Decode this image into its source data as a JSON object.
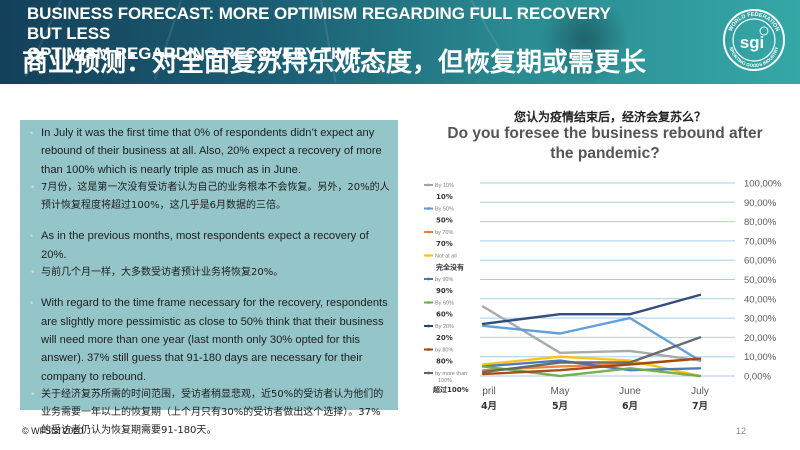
{
  "header": {
    "title_en_line1": "BUSINESS FORECAST: MORE OPTIMISM REGARDING FULL RECOVERY BUT LESS",
    "title_en_line2": "OPTIMISM REGARDING RECOVERY TIME",
    "title_zh": "商业预测：对全面复苏持乐观态度，但恢复期或需更长",
    "logo": {
      "icon": "sgi-logo-icon",
      "ring_text_top": "WORLD FEDERATION",
      "ring_text_bottom": "SPORTING GOODS INDUSTRY",
      "center_text": "sgi"
    }
  },
  "text_panel": {
    "bullets": [
      {
        "lang": "en",
        "text": "In July it was the first time that 0% of respondents didn’t expect any rebound of their business at all. Also, 20% expect a recovery of more than 100% which is nearly triple as much as in June."
      },
      {
        "lang": "zh",
        "text": "7月份，这是第一次没有受访者认为自己的业务根本不会恢复。另外，20%的人预计恢复程度将超过100%，这几乎是6月数据的三倍。"
      },
      {
        "lang": "en",
        "text": "As in the previous months, most respondents expect a recovery of 20%."
      },
      {
        "lang": "zh",
        "text": "与前几个月一样，大多数受访者预计业务将恢复20%。"
      },
      {
        "lang": "en",
        "text": "With regard to the time frame necessary for  the recovery, respondents are slightly more pessimistic as close to 50% think that their business will need more than one year (last  month only 30% opted for this answer). 37% still guess that 91-180 days are necessary for their company to rebound."
      },
      {
        "lang": "zh",
        "text": "关于经济复苏所需的时间范围，受访者稍显悲观，近50%的受访者认为他们的业务需要一年以上的恢复期（上个月只有30%的受访者做出这个选择）。37%的受访者仍认为恢复期需要91-180天。"
      }
    ]
  },
  "chart_data": {
    "type": "line",
    "title_zh": "您认为疫情结束后，经济会复苏么？",
    "title": "Do you foresee the business rebound after the pandemic?",
    "xlabel": "",
    "ylabel": "",
    "categories": [
      "pril",
      "May",
      "June",
      "July"
    ],
    "categories_zh": [
      "4月",
      "5月",
      "6月",
      "7月"
    ],
    "ylim": [
      0,
      100
    ],
    "yticks": [
      "0,00%",
      "10,00%",
      "20,00%",
      "30,00%",
      "40,00%",
      "50,00%",
      "60,00%",
      "70,00%",
      "80,00%",
      "90,00%",
      "100,00%"
    ],
    "ytick_values": [
      0,
      10,
      20,
      30,
      40,
      50,
      60,
      70,
      80,
      90,
      100
    ],
    "y_axis_position": "right",
    "grid": true,
    "legend_position": "left",
    "series": [
      {
        "name": "By 10%",
        "name_zh": "10%",
        "color": "#a5a5a5",
        "values": [
          36,
          12,
          13,
          8
        ]
      },
      {
        "name": "By 50%",
        "name_zh": "50%",
        "color": "#5b9bd5",
        "values": [
          26,
          22,
          30,
          8
        ]
      },
      {
        "name": "by 70%",
        "name_zh": "70%",
        "color": "#ed7d31",
        "values": [
          3,
          5,
          6,
          9
        ]
      },
      {
        "name": "Not at all",
        "name_zh": "完全没有",
        "color": "#ffc000",
        "values": [
          6,
          10,
          8,
          0
        ]
      },
      {
        "name": "by 90%",
        "name_zh": "90%",
        "color": "#4472c4",
        "values": [
          5,
          8,
          3,
          4
        ]
      },
      {
        "name": "By 60%",
        "name_zh": "60%",
        "color": "#70ad47",
        "values": [
          5,
          0,
          4,
          0
        ]
      },
      {
        "name": "By 20%",
        "name_zh": "20%",
        "color": "#264478",
        "values": [
          27,
          32,
          32,
          42
        ]
      },
      {
        "name": "by 80%",
        "name_zh": "80%",
        "color": "#9e480e",
        "values": [
          1,
          3,
          6,
          9
        ]
      },
      {
        "name": "by more than 100%",
        "name_zh": "超过100%",
        "color": "#636363",
        "values": [
          2,
          7,
          7,
          20
        ]
      }
    ]
  },
  "footer": {
    "copyright": "© WFSGI 2020",
    "page_number": "12"
  }
}
